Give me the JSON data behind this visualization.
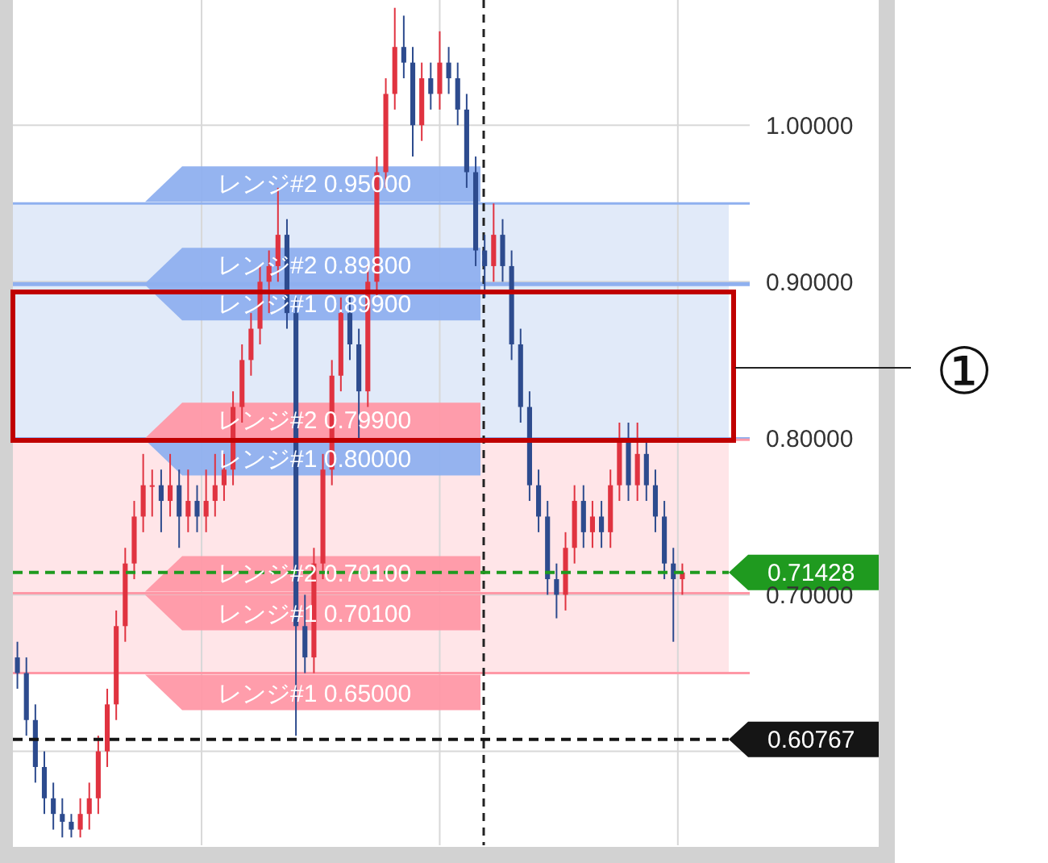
{
  "chart_data": {
    "type": "candlestick",
    "categories": [
      null,
      null,
      null,
      null,
      null,
      null,
      null,
      null,
      null,
      null,
      null,
      null,
      null,
      null,
      null,
      null,
      null,
      null,
      null,
      null,
      null,
      null,
      null,
      null,
      null,
      null,
      null,
      null,
      null,
      null,
      null,
      null,
      null,
      null,
      null,
      null,
      null,
      null,
      null,
      null,
      null,
      null,
      null,
      null,
      null,
      null,
      null,
      null,
      null,
      null,
      null,
      null,
      null,
      null,
      null,
      null,
      null,
      null,
      null,
      null,
      null,
      null,
      null,
      null,
      null,
      null,
      null,
      null,
      null,
      null,
      null,
      null,
      null,
      null,
      null,
      null,
      null,
      null,
      null,
      null,
      null,
      null
    ],
    "ohlc": [
      [
        0.66,
        0.67,
        0.64,
        0.65
      ],
      [
        0.65,
        0.66,
        0.61,
        0.62
      ],
      [
        0.62,
        0.63,
        0.58,
        0.59
      ],
      [
        0.59,
        0.6,
        0.56,
        0.57
      ],
      [
        0.57,
        0.58,
        0.55,
        0.56
      ],
      [
        0.56,
        0.57,
        0.545,
        0.555
      ],
      [
        0.555,
        0.56,
        0.545,
        0.55
      ],
      [
        0.55,
        0.57,
        0.545,
        0.56
      ],
      [
        0.56,
        0.58,
        0.55,
        0.57
      ],
      [
        0.57,
        0.61,
        0.56,
        0.6
      ],
      [
        0.6,
        0.64,
        0.59,
        0.63
      ],
      [
        0.63,
        0.69,
        0.62,
        0.68
      ],
      [
        0.68,
        0.73,
        0.67,
        0.72
      ],
      [
        0.72,
        0.76,
        0.71,
        0.75
      ],
      [
        0.75,
        0.79,
        0.74,
        0.77
      ],
      [
        0.77,
        0.78,
        0.75,
        0.77
      ],
      [
        0.77,
        0.78,
        0.74,
        0.76
      ],
      [
        0.76,
        0.79,
        0.75,
        0.77
      ],
      [
        0.77,
        0.78,
        0.73,
        0.75
      ],
      [
        0.75,
        0.78,
        0.74,
        0.76
      ],
      [
        0.76,
        0.77,
        0.74,
        0.75
      ],
      [
        0.75,
        0.78,
        0.74,
        0.76
      ],
      [
        0.76,
        0.79,
        0.75,
        0.77
      ],
      [
        0.77,
        0.79,
        0.76,
        0.78
      ],
      [
        0.78,
        0.83,
        0.77,
        0.82
      ],
      [
        0.82,
        0.86,
        0.81,
        0.85
      ],
      [
        0.85,
        0.88,
        0.84,
        0.87
      ],
      [
        0.87,
        0.91,
        0.86,
        0.9
      ],
      [
        0.9,
        0.92,
        0.88,
        0.91
      ],
      [
        0.91,
        0.96,
        0.9,
        0.93
      ],
      [
        0.93,
        0.94,
        0.87,
        0.88
      ],
      [
        0.88,
        0.89,
        0.61,
        0.68
      ],
      [
        0.68,
        0.7,
        0.65,
        0.66
      ],
      [
        0.66,
        0.73,
        0.65,
        0.72
      ],
      [
        0.72,
        0.79,
        0.71,
        0.78
      ],
      [
        0.78,
        0.85,
        0.77,
        0.84
      ],
      [
        0.84,
        0.89,
        0.83,
        0.88
      ],
      [
        0.88,
        0.89,
        0.85,
        0.86
      ],
      [
        0.86,
        0.87,
        0.8,
        0.83
      ],
      [
        0.83,
        0.91,
        0.82,
        0.9
      ],
      [
        0.9,
        0.98,
        0.89,
        0.97
      ],
      [
        0.97,
        1.03,
        0.96,
        1.02
      ],
      [
        1.02,
        1.075,
        1.01,
        1.05
      ],
      [
        1.05,
        1.07,
        1.03,
        1.04
      ],
      [
        1.04,
        1.05,
        0.98,
        1.0
      ],
      [
        1.0,
        1.04,
        0.99,
        1.03
      ],
      [
        1.03,
        1.04,
        1.01,
        1.02
      ],
      [
        1.02,
        1.06,
        1.01,
        1.04
      ],
      [
        1.04,
        1.05,
        1.02,
        1.03
      ],
      [
        1.03,
        1.04,
        1.0,
        1.01
      ],
      [
        1.01,
        1.02,
        0.96,
        0.97
      ],
      [
        0.97,
        0.98,
        0.91,
        0.92
      ],
      [
        0.92,
        0.93,
        0.89,
        0.91
      ],
      [
        0.91,
        0.95,
        0.9,
        0.93
      ],
      [
        0.93,
        0.94,
        0.9,
        0.91
      ],
      [
        0.91,
        0.92,
        0.85,
        0.86
      ],
      [
        0.86,
        0.87,
        0.81,
        0.82
      ],
      [
        0.82,
        0.83,
        0.76,
        0.77
      ],
      [
        0.77,
        0.78,
        0.74,
        0.75
      ],
      [
        0.75,
        0.76,
        0.7,
        0.71
      ],
      [
        0.71,
        0.72,
        0.685,
        0.7
      ],
      [
        0.7,
        0.74,
        0.69,
        0.73
      ],
      [
        0.73,
        0.77,
        0.72,
        0.76
      ],
      [
        0.76,
        0.77,
        0.73,
        0.74
      ],
      [
        0.74,
        0.76,
        0.73,
        0.75
      ],
      [
        0.75,
        0.76,
        0.73,
        0.74
      ],
      [
        0.74,
        0.78,
        0.73,
        0.77
      ],
      [
        0.77,
        0.81,
        0.76,
        0.8
      ],
      [
        0.8,
        0.81,
        0.76,
        0.77
      ],
      [
        0.77,
        0.81,
        0.76,
        0.79
      ],
      [
        0.79,
        0.8,
        0.76,
        0.77
      ],
      [
        0.77,
        0.78,
        0.74,
        0.75
      ],
      [
        0.75,
        0.76,
        0.71,
        0.72
      ],
      [
        0.72,
        0.73,
        0.67,
        0.71
      ],
      [
        0.71,
        0.72,
        0.7,
        0.71428
      ],
      null,
      null,
      null,
      null,
      null,
      null,
      null
    ],
    "colors": [
      "#2d4b8e",
      "#2d4b8e",
      "#2d4b8e",
      "#2d4b8e",
      "#2d4b8e",
      "#2d4b8e",
      "#2d4b8e",
      "#e03340",
      "#e03340",
      "#e03340",
      "#e03340",
      "#e03340",
      "#e03340",
      "#e03340",
      "#e03340",
      "#e03340",
      "#2d4b8e",
      "#e03340",
      "#2d4b8e",
      "#e03340",
      "#2d4b8e",
      "#e03340",
      "#e03340",
      "#e03340",
      "#e03340",
      "#e03340",
      "#e03340",
      "#e03340",
      "#e03340",
      "#e03340",
      "#2d4b8e",
      "#2d4b8e",
      "#2d4b8e",
      "#e03340",
      "#e03340",
      "#e03340",
      "#e03340",
      "#2d4b8e",
      "#2d4b8e",
      "#e03340",
      "#e03340",
      "#e03340",
      "#e03340",
      "#2d4b8e",
      "#2d4b8e",
      "#e03340",
      "#2d4b8e",
      "#e03340",
      "#2d4b8e",
      "#2d4b8e",
      "#2d4b8e",
      "#2d4b8e",
      "#2d4b8e",
      "#e03340",
      "#2d4b8e",
      "#2d4b8e",
      "#2d4b8e",
      "#2d4b8e",
      "#2d4b8e",
      "#2d4b8e",
      "#2d4b8e",
      "#e03340",
      "#e03340",
      "#2d4b8e",
      "#e03340",
      "#2d4b8e",
      "#e03340",
      "#e03340",
      "#2d4b8e",
      "#e03340",
      "#2d4b8e",
      "#2d4b8e",
      "#2d4b8e",
      "#2d4b8e",
      "#e03340",
      null,
      null,
      null,
      null,
      null,
      null,
      null
    ],
    "ylim": [
      0.54,
      1.08
    ],
    "yticks": [
      {
        "value": 0.6,
        "label": null
      },
      {
        "value": 0.7,
        "label": "0.70000"
      },
      {
        "value": 0.8,
        "label": "0.80000"
      },
      {
        "value": 0.9,
        "label": "0.90000"
      },
      {
        "value": 1.0,
        "label": "1.00000"
      }
    ],
    "tick_labels": "y",
    "grid": true,
    "bands": [
      {
        "axis": "y",
        "from": 0.799,
        "to": 0.95,
        "color": "#dce6f8"
      },
      {
        "axis": "y",
        "from": 0.65,
        "to": 0.799,
        "color": "#ffe0e4"
      }
    ],
    "ref_lines": [
      {
        "axis": "y",
        "value": 0.95,
        "label": "レンジ#2 0.95000",
        "color": "#8fb0ef",
        "line_style": "solid"
      },
      {
        "axis": "y",
        "value": 0.898,
        "label": "レンジ#2 0.89800",
        "color": "#8fb0ef",
        "line_style": "solid"
      },
      {
        "axis": "y",
        "value": 0.899,
        "label": "レンジ#1 0.89900",
        "color": "#8fb0ef",
        "line_style": "solid"
      },
      {
        "axis": "y",
        "value": 0.799,
        "label": "レンジ#2 0.79900",
        "color": "#ff98a6",
        "line_style": "solid"
      },
      {
        "axis": "y",
        "value": 0.8,
        "label": "レンジ#1 0.80000",
        "color": "#8fb0ef",
        "line_style": "solid"
      },
      {
        "axis": "y",
        "value": 0.701,
        "label": "レンジ#2 0.70100",
        "color": "#ff98a6",
        "line_style": "solid"
      },
      {
        "axis": "y",
        "value": 0.65,
        "label": "レンジ#1 0.65000",
        "color": "#ff98a6",
        "line_style": "solid"
      },
      {
        "axis": "y",
        "value": 0.71428,
        "label": "0.71428",
        "color": "#1f9a1f",
        "line_style": "dashed"
      },
      {
        "axis": "y",
        "value": 0.60767,
        "label": "0.60767",
        "color": "#151515",
        "line_style": "dashed"
      }
    ],
    "annotations": [
      "①",
      {
        "text": "レンジ#1 0.70100",
        "y": 0.701
      }
    ]
  }
}
